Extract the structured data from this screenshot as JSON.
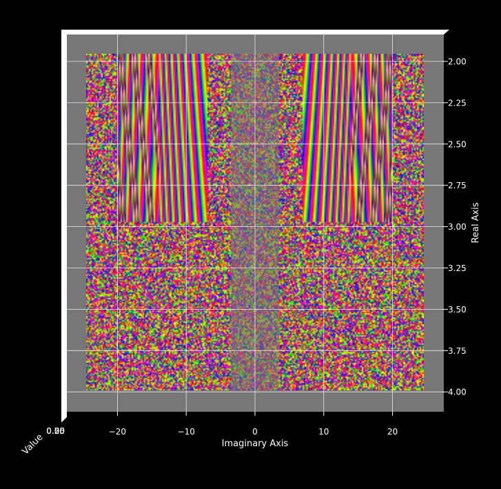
{
  "chart_data": {
    "type": "surface3d",
    "view": "top-down",
    "title": "",
    "xlabel": "Imaginary Axis",
    "ylabel": "Real Axis",
    "zlabel": "Value",
    "x_ticks": [
      -20,
      -10,
      0,
      10,
      20
    ],
    "x_tick_labels": [
      "−20",
      "−10",
      "0",
      "10",
      "20"
    ],
    "y_ticks": [
      2.0,
      2.25,
      2.5,
      2.75,
      3.0,
      3.25,
      3.5,
      3.75,
      4.0
    ],
    "y_tick_labels": [
      "2.00",
      "2.25",
      "2.50",
      "2.75",
      "3.00",
      "3.25",
      "3.50",
      "3.75",
      "4.00"
    ],
    "xlim": [
      -27.5,
      27.5
    ],
    "ylim": [
      2.0,
      4.0
    ],
    "data_x_range": [
      -24.5,
      24.5
    ],
    "data_y_range": [
      2.0,
      4.0
    ],
    "band_boundary_real": 3.0,
    "colormap": [
      "#ff0000",
      "#ffff00",
      "#00ff00",
      "#0000ff",
      "#ff00ff"
    ],
    "grid": true,
    "pane_color": "#777777",
    "background_color": "#000000"
  }
}
